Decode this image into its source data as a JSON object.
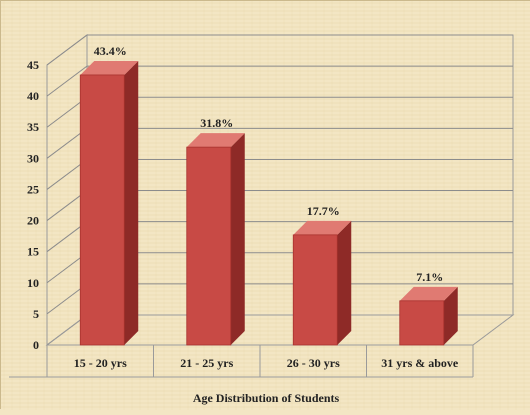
{
  "chart_data": {
    "type": "bar",
    "categories": [
      "15 - 20 yrs",
      "21 - 25 yrs",
      "26 - 30 yrs",
      "31 yrs & above"
    ],
    "values": [
      43.4,
      31.8,
      17.7,
      7.1
    ],
    "data_labels": [
      "43.4%",
      "31.8%",
      "17.7%",
      "7.1%"
    ],
    "xlabel": "Age Distribution of Students",
    "ylabel": "",
    "ylim": [
      0,
      45
    ],
    "yticks": [
      0,
      5,
      10,
      15,
      20,
      25,
      30,
      35,
      40,
      45
    ],
    "grid": true,
    "legend": "none",
    "style": "3d",
    "colors": {
      "bar_front": "#c84a45",
      "bar_side": "#8e2a27",
      "bar_top": "#e07a72",
      "grid": "#8c8c8c",
      "background": "#f3e6c4"
    }
  }
}
